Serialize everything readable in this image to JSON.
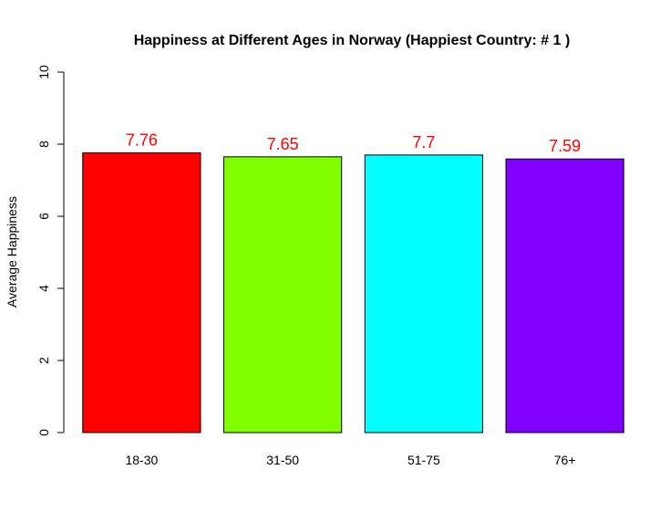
{
  "chart_data": {
    "type": "bar",
    "title": "Happiness at Different Ages in Norway (Happiest Country: # 1 )",
    "xlabel": "",
    "ylabel": "Average Happiness",
    "categories": [
      "18-30",
      "31-50",
      "51-75",
      "76+"
    ],
    "values": [
      7.76,
      7.65,
      7.7,
      7.59
    ],
    "data_labels": [
      "7.76",
      "7.65",
      "7.7",
      "7.59"
    ],
    "bar_colors": [
      "#ff0000",
      "#80ff00",
      "#00ffff",
      "#8000ff"
    ],
    "data_label_color": "#ff0000",
    "ylim": [
      0,
      10
    ],
    "yticks": [
      0,
      2,
      4,
      6,
      8,
      10
    ],
    "ytick_labels": [
      "0",
      "2",
      "4",
      "6",
      "8",
      "10"
    ],
    "grid": false,
    "legend": "none"
  }
}
